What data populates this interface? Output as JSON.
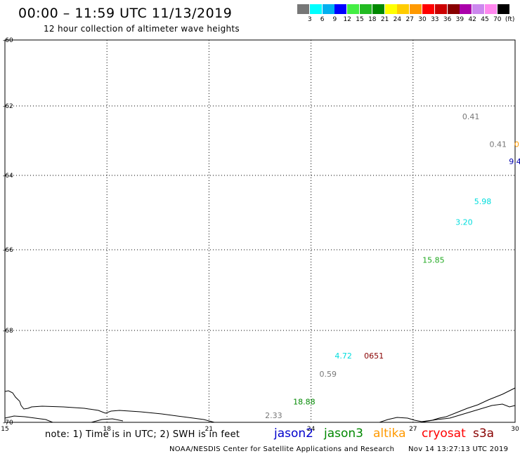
{
  "title": "00:00 – 11:59 UTC 11/13/2019",
  "subtitle": "12 hour collection of altimeter wave heights",
  "colorbar": {
    "colors": [
      "#777777",
      "#00ffff",
      "#00b0f0",
      "#0000ff",
      "#44ee44",
      "#22bb22",
      "#008800",
      "#ffff00",
      "#ffcc00",
      "#ff9900",
      "#ff0000",
      "#cc0000",
      "#880000",
      "#aa00aa",
      "#cc88ee",
      "#ff88ee",
      "#000000"
    ],
    "labels": [
      "3",
      "6",
      "9",
      "12",
      "15",
      "18",
      "21",
      "24",
      "27",
      "30",
      "33",
      "36",
      "39",
      "42",
      "45",
      "70",
      "(ft)"
    ]
  },
  "chart_data": {
    "type": "scatter",
    "xlim": [
      15,
      30
    ],
    "ylim": [
      -70,
      -60
    ],
    "xticks": [
      "15",
      "18",
      "21",
      "24",
      "27",
      "30"
    ],
    "yticks": [
      "-60",
      "-62",
      "-64",
      "-66",
      "-68",
      "-70"
    ],
    "grid": true,
    "points": [
      {
        "lon": 28.7,
        "lat": -62.3,
        "text": "0.41",
        "color": "#777777"
      },
      {
        "lon": 29.5,
        "lat": -63.1,
        "text": "0.41",
        "color": "#777777"
      },
      {
        "lon": 30.05,
        "lat": -63.1,
        "text": "0",
        "color": "#ff9900"
      },
      {
        "lon": 30.0,
        "lat": -63.6,
        "text": "9.4",
        "color": "#0000aa"
      },
      {
        "lon": 29.05,
        "lat": -64.7,
        "text": "5.98",
        "color": "#00dddd"
      },
      {
        "lon": 28.5,
        "lat": -65.25,
        "text": "3.20",
        "color": "#00dddd"
      },
      {
        "lon": 27.6,
        "lat": -66.25,
        "text": "15.85",
        "color": "#22aa22"
      },
      {
        "lon": 24.95,
        "lat": -68.55,
        "text": "4.72",
        "color": "#00dddd"
      },
      {
        "lon": 25.85,
        "lat": -68.55,
        "text": "0651",
        "color": "#880000"
      },
      {
        "lon": 24.5,
        "lat": -68.95,
        "text": "0.59",
        "color": "#777777"
      },
      {
        "lon": 23.8,
        "lat": -69.55,
        "text": "18.88",
        "color": "#008800"
      },
      {
        "lon": 22.9,
        "lat": -69.85,
        "text": "2.33",
        "color": "#777777"
      }
    ]
  },
  "note": "note: 1) Time is in UTC; 2) SWH is in feet",
  "legend": [
    {
      "name": "jason2",
      "color": "#0000cc"
    },
    {
      "name": "jason3",
      "color": "#008800"
    },
    {
      "name": "altika",
      "color": "#ff9900"
    },
    {
      "name": "cryosat",
      "color": "#ff0000"
    },
    {
      "name": "s3a",
      "color": "#880000"
    }
  ],
  "footer_left": "NOAA/NESDIS Center for Satellite Applications and Research",
  "footer_right": "Nov 14 13:27:13 UTC 2019"
}
